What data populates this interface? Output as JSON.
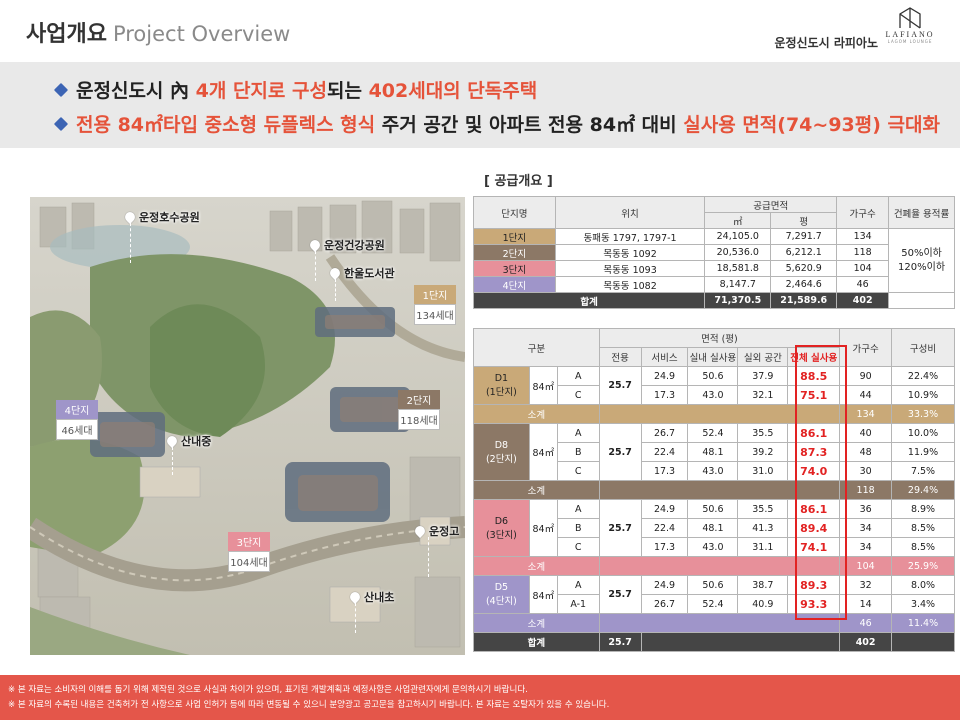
{
  "header": {
    "title_ko": "사업개요",
    "title_en": "Project Overview",
    "brand": "운정신도시 라피아노",
    "logo_main": "LAFIANO",
    "logo_sub": "LAGOM LOUNGE"
  },
  "banner": {
    "line1": {
      "a": "운정신도시 內 ",
      "b": "4개 단지로 구성",
      "c": "되는 ",
      "d": "402세대의 단독주택"
    },
    "line2": {
      "a": "전용 84㎡타입 중소형 듀플렉스 형식",
      "b": " 주거 공간 및 아파트 전용 84㎡ 대비 ",
      "c": "실사용 면적(74~93평) 극대화"
    }
  },
  "map": {
    "labels": {
      "lake_park": "운정호수공원",
      "river_park": "운정건강공원",
      "library": "한울도서관",
      "middle_school": "산내중",
      "high_school": "운정고",
      "elementary": "산내초"
    },
    "badges": {
      "b1": {
        "name": "1단지",
        "count": "134세대"
      },
      "b2": {
        "name": "2단지",
        "count": "118세대"
      },
      "b3": {
        "name": "3단지",
        "count": "104세대"
      },
      "b4": {
        "name": "4단지",
        "count": "46세대"
      }
    },
    "colors": {
      "b1": "#c9a978",
      "b2": "#8c7866",
      "b3": "#e7909a",
      "b4": "#9f95c9"
    }
  },
  "supply": {
    "title": "[ 공급개요 ]",
    "headers": {
      "complex": "단지명",
      "location": "위치",
      "area": "공급면적",
      "sqm": "㎡",
      "pyeong": "평",
      "households": "가구수",
      "ratio": "건폐율 용적률"
    },
    "rows": [
      {
        "name": "1단지",
        "loc": "동패동 1797, 1797-1",
        "sqm": "24,105.0",
        "py": "7,291.7",
        "hh": "134"
      },
      {
        "name": "2단지",
        "loc": "목동동 1092",
        "sqm": "20,536.0",
        "py": "6,212.1",
        "hh": "118"
      },
      {
        "name": "3단지",
        "loc": "목동동 1093",
        "sqm": "18,581.8",
        "py": "5,620.9",
        "hh": "104"
      },
      {
        "name": "4단지",
        "loc": "목동동 1082",
        "sqm": "8,147.7",
        "py": "2,464.6",
        "hh": "46"
      }
    ],
    "ratio_value_1": "50%이하",
    "ratio_value_2": "120%이하",
    "total": {
      "label": "합계",
      "sqm": "71,370.5",
      "py": "21,589.6",
      "hh": "402"
    }
  },
  "detail": {
    "headers": {
      "category": "구분",
      "area": "면적 (평)",
      "exclusive": "전용",
      "service": "서비스",
      "indoor": "실내 실사용",
      "outdoor": "실외 공간",
      "total_use": "전체 실사용",
      "households": "가구수",
      "composition": "구성비"
    },
    "type_label": "84㎡",
    "subtotal_label": "소계",
    "groups": [
      {
        "code": "D1",
        "complex": "(1단지)",
        "excl": "25.7",
        "rows": [
          {
            "t": "A",
            "svc": "24.9",
            "in": "50.6",
            "out": "37.9",
            "tot": "88.5",
            "hh": "90",
            "pct": "22.4%"
          },
          {
            "t": "C",
            "svc": "17.3",
            "in": "43.0",
            "out": "32.1",
            "tot": "75.1",
            "hh": "44",
            "pct": "10.9%"
          }
        ],
        "sub": {
          "hh": "134",
          "pct": "33.3%"
        }
      },
      {
        "code": "D8",
        "complex": "(2단지)",
        "excl": "25.7",
        "rows": [
          {
            "t": "A",
            "svc": "26.7",
            "in": "52.4",
            "out": "35.5",
            "tot": "86.1",
            "hh": "40",
            "pct": "10.0%"
          },
          {
            "t": "B",
            "svc": "22.4",
            "in": "48.1",
            "out": "39.2",
            "tot": "87.3",
            "hh": "48",
            "pct": "11.9%"
          },
          {
            "t": "C",
            "svc": "17.3",
            "in": "43.0",
            "out": "31.0",
            "tot": "74.0",
            "hh": "30",
            "pct": "7.5%"
          }
        ],
        "sub": {
          "hh": "118",
          "pct": "29.4%"
        }
      },
      {
        "code": "D6",
        "complex": "(3단지)",
        "excl": "25.7",
        "rows": [
          {
            "t": "A",
            "svc": "24.9",
            "in": "50.6",
            "out": "35.5",
            "tot": "86.1",
            "hh": "36",
            "pct": "8.9%"
          },
          {
            "t": "B",
            "svc": "22.4",
            "in": "48.1",
            "out": "41.3",
            "tot": "89.4",
            "hh": "34",
            "pct": "8.5%"
          },
          {
            "t": "C",
            "svc": "17.3",
            "in": "43.0",
            "out": "31.1",
            "tot": "74.1",
            "hh": "34",
            "pct": "8.5%"
          }
        ],
        "sub": {
          "hh": "104",
          "pct": "25.9%"
        }
      },
      {
        "code": "D5",
        "complex": "(4단지)",
        "excl": "25.7",
        "rows": [
          {
            "t": "A",
            "svc": "24.9",
            "in": "50.6",
            "out": "38.7",
            "tot": "89.3",
            "hh": "32",
            "pct": "8.0%"
          },
          {
            "t": "A-1",
            "svc": "26.7",
            "in": "52.4",
            "out": "40.9",
            "tot": "93.3",
            "hh": "14",
            "pct": "3.4%"
          }
        ],
        "sub": {
          "hh": "46",
          "pct": "11.4%"
        }
      }
    ],
    "total": {
      "label": "합계",
      "excl": "25.7",
      "hh": "402"
    }
  },
  "footer": {
    "line1": "※ 본 자료는  소비자의 이해를 돕기 위해 제작된 것으로 사실과 차이가 있으며, 표기된 개발계획과 예정사항은 사업관련자에게 문의하시기 바랍니다.",
    "line2": "※ 본 자료의 수록된 내용은 건축허가 전 사항으로 사업 인허가 등에 따라 변동될 수 있으니 분양광고 공고문을 참고하시기 바랍니다. 본 자료는 오탈자가 있을 수 있습니다."
  }
}
